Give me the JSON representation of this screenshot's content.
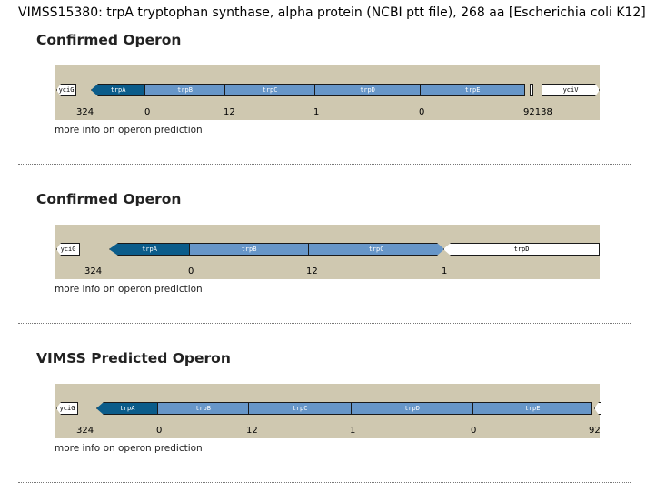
{
  "page": {
    "title": "VIMSS15380: trpA tryptophan synthase, alpha protein (NCBI ptt file), 268 aa [Escherichia coli K12]"
  },
  "sections": [
    {
      "title": "Confirmed Operon",
      "genes": [
        "yciG",
        "trpA",
        "trpB",
        "trpC",
        "trpD",
        "trpE",
        "yciV"
      ],
      "distances": [
        "324",
        "0",
        "12",
        "1",
        "0",
        "92138"
      ],
      "more_link": "more info on operon prediction"
    },
    {
      "title": "Confirmed Operon",
      "genes": [
        "yciG",
        "trpA",
        "trpB",
        "trpC",
        "trpD"
      ],
      "distances": [
        "324",
        "0",
        "12",
        "1"
      ],
      "more_link": "more info on operon prediction"
    },
    {
      "title": "VIMSS Predicted Operon",
      "genes": [
        "yciG",
        "trpA",
        "trpB",
        "trpC",
        "trpD",
        "trpE"
      ],
      "distances": [
        "324",
        "0",
        "12",
        "1",
        "0",
        "92"
      ],
      "more_link": "more info on operon prediction"
    }
  ],
  "colors": {
    "strip": "#cfc8b0",
    "query_gene": "#0b5c8a",
    "operon_gene": "#6796c8",
    "other_gene": "#ffffff"
  }
}
